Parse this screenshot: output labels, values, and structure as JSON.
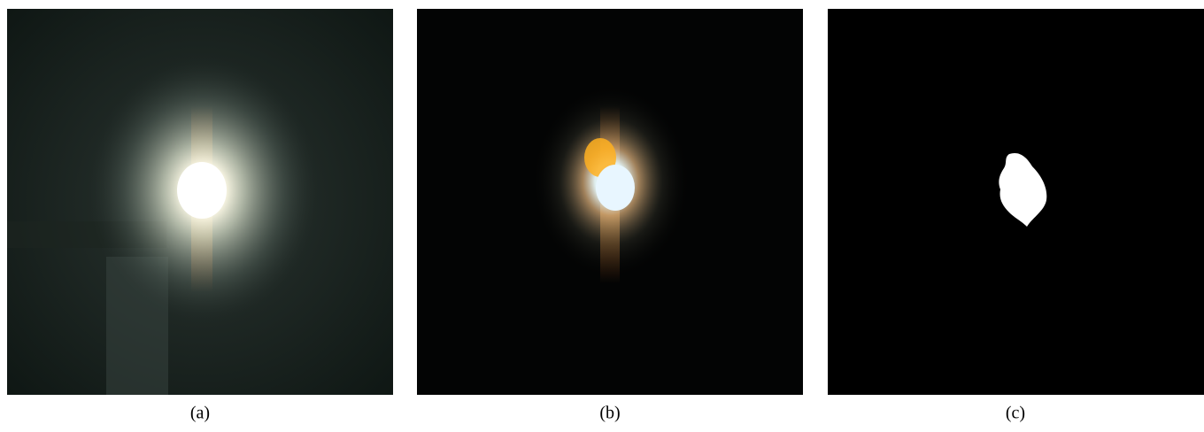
{
  "panels": [
    {
      "caption": "(a)"
    },
    {
      "caption": "(b)"
    },
    {
      "caption": "(c)"
    }
  ]
}
